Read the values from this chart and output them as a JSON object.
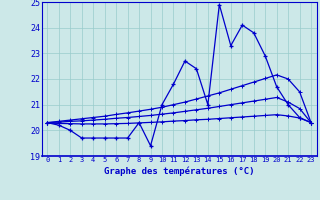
{
  "title": "Graphe des températures (°C)",
  "x_hours": [
    0,
    1,
    2,
    3,
    4,
    5,
    6,
    7,
    8,
    9,
    10,
    11,
    12,
    13,
    14,
    15,
    16,
    17,
    18,
    19,
    20,
    21,
    22,
    23
  ],
  "temp_actual": [
    20.3,
    20.2,
    20.0,
    19.7,
    19.7,
    19.7,
    19.7,
    19.7,
    20.3,
    19.4,
    21.0,
    21.8,
    22.7,
    22.4,
    21.0,
    24.9,
    23.3,
    24.1,
    23.8,
    22.9,
    21.7,
    21.0,
    20.5,
    20.3
  ],
  "temp_trend1": [
    20.3,
    20.35,
    20.4,
    20.45,
    20.5,
    20.55,
    20.62,
    20.68,
    20.75,
    20.82,
    20.9,
    21.0,
    21.1,
    21.22,
    21.34,
    21.46,
    21.6,
    21.74,
    21.88,
    22.02,
    22.16,
    22.0,
    21.5,
    20.3
  ],
  "temp_trend2": [
    20.3,
    20.32,
    20.35,
    20.37,
    20.4,
    20.43,
    20.47,
    20.5,
    20.54,
    20.58,
    20.63,
    20.68,
    20.74,
    20.8,
    20.86,
    20.93,
    21.0,
    21.07,
    21.14,
    21.21,
    21.28,
    21.1,
    20.85,
    20.3
  ],
  "temp_trend3": [
    20.28,
    20.27,
    20.26,
    20.25,
    20.25,
    20.25,
    20.26,
    20.27,
    20.29,
    20.31,
    20.33,
    20.36,
    20.38,
    20.41,
    20.43,
    20.46,
    20.49,
    20.52,
    20.55,
    20.58,
    20.61,
    20.56,
    20.48,
    20.3
  ],
  "line_color": "#0000cc",
  "bg_color": "#cce8e8",
  "grid_color": "#99cccc",
  "ylim": [
    19,
    25
  ],
  "yticks": [
    19,
    20,
    21,
    22,
    23,
    24,
    25
  ],
  "xlim": [
    -0.5,
    23.5
  ]
}
